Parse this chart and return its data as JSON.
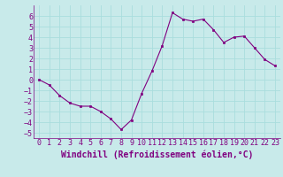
{
  "x": [
    0,
    1,
    2,
    3,
    4,
    5,
    6,
    7,
    8,
    9,
    10,
    11,
    12,
    13,
    14,
    15,
    16,
    17,
    18,
    19,
    20,
    21,
    22,
    23
  ],
  "y": [
    0.0,
    -0.5,
    -1.5,
    -2.2,
    -2.5,
    -2.5,
    -3.0,
    -3.7,
    -4.7,
    -3.8,
    -1.3,
    0.8,
    3.2,
    6.3,
    5.7,
    5.5,
    5.7,
    4.7,
    3.5,
    4.0,
    4.1,
    3.0,
    1.9,
    1.3
  ],
  "xlabel": "Windchill (Refroidissement éolien,°C)",
  "line_color": "#800080",
  "marker_color": "#800080",
  "bg_color": "#c8eaea",
  "grid_color": "#aadddd",
  "xlim": [
    -0.5,
    23.5
  ],
  "ylim": [
    -5.5,
    7.0
  ],
  "yticks": [
    -5,
    -4,
    -3,
    -2,
    -1,
    0,
    1,
    2,
    3,
    4,
    5,
    6
  ],
  "xticks": [
    0,
    1,
    2,
    3,
    4,
    5,
    6,
    7,
    8,
    9,
    10,
    11,
    12,
    13,
    14,
    15,
    16,
    17,
    18,
    19,
    20,
    21,
    22,
    23
  ],
  "font_color": "#800080",
  "label_fontsize": 7.0,
  "tick_fontsize": 6.0
}
